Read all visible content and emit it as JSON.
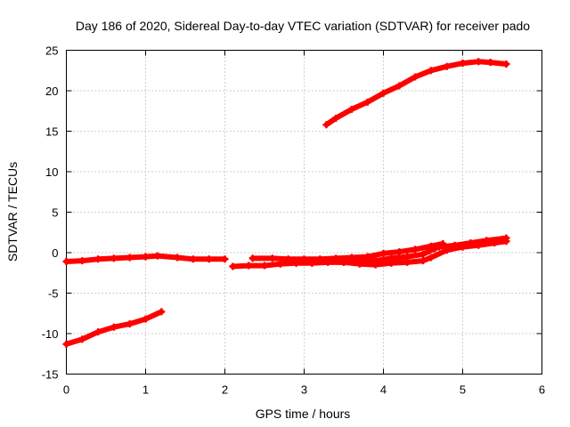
{
  "chart_data": {
    "type": "line",
    "title": "Day 186 of 2020, Sidereal Day-to-day VTEC variation (SDTVAR) for receiver pado",
    "xlabel": "GPS time / hours",
    "ylabel": "SDTVAR / TECUs",
    "xlim": [
      0,
      6
    ],
    "ylim": [
      -15,
      25
    ],
    "xticks": [
      0,
      1,
      2,
      3,
      4,
      5,
      6
    ],
    "yticks": [
      -15,
      -10,
      -5,
      0,
      5,
      10,
      15,
      20,
      25
    ],
    "grid": true,
    "color": "#ff0000",
    "series": [
      {
        "x": [
          0.0,
          0.2,
          0.4,
          0.6,
          0.8,
          1.0,
          1.15,
          1.4,
          1.6,
          1.8,
          2.0
        ],
        "y": [
          -1.1,
          -1.0,
          -0.8,
          -0.7,
          -0.6,
          -0.5,
          -0.4,
          -0.6,
          -0.8,
          -0.8,
          -0.8
        ]
      },
      {
        "x": [
          0.0,
          0.2,
          0.4,
          0.6,
          0.8,
          1.0,
          1.2
        ],
        "y": [
          -11.3,
          -10.7,
          -9.8,
          -9.2,
          -8.8,
          -8.2,
          -7.3
        ]
      },
      {
        "x": [
          2.1,
          2.3,
          2.5,
          2.7,
          2.9,
          3.1,
          3.3,
          3.5,
          3.7,
          3.9,
          4.1,
          4.3,
          4.5,
          4.65,
          4.75
        ],
        "y": [
          -1.7,
          -1.6,
          -1.6,
          -1.4,
          -1.3,
          -1.3,
          -1.2,
          -1.2,
          -1.1,
          -1.0,
          -0.7,
          -0.5,
          -0.2,
          0.5,
          1.0
        ]
      },
      {
        "x": [
          2.35,
          2.6,
          2.8,
          3.0,
          3.2,
          3.4,
          3.6,
          3.8,
          4.0,
          4.2,
          4.4,
          4.6,
          4.75
        ],
        "y": [
          -0.7,
          -0.7,
          -0.8,
          -0.8,
          -0.8,
          -0.7,
          -0.6,
          -0.5,
          -0.1,
          0.1,
          0.4,
          0.8,
          1.1
        ]
      },
      {
        "x": [
          2.9,
          3.1,
          3.3,
          3.5,
          3.7,
          3.9,
          4.1,
          4.3,
          4.5,
          4.6,
          4.8,
          5.0,
          5.2,
          5.4,
          5.55
        ],
        "y": [
          -1.0,
          -1.0,
          -1.1,
          -1.2,
          -1.4,
          -1.5,
          -1.3,
          -1.2,
          -1.0,
          -0.6,
          0.3,
          0.7,
          0.9,
          1.2,
          1.4
        ]
      },
      {
        "x": [
          4.7,
          4.9,
          5.1,
          5.3,
          5.55
        ],
        "y": [
          0.7,
          0.9,
          1.2,
          1.5,
          1.8
        ]
      },
      {
        "x": [
          3.28,
          3.4,
          3.6,
          3.8,
          4.0,
          4.2,
          4.4,
          4.6,
          4.8,
          5.0,
          5.2,
          5.35,
          5.55
        ],
        "y": [
          15.8,
          16.6,
          17.7,
          18.6,
          19.7,
          20.6,
          21.7,
          22.5,
          23.0,
          23.4,
          23.6,
          23.5,
          23.3
        ]
      }
    ]
  }
}
